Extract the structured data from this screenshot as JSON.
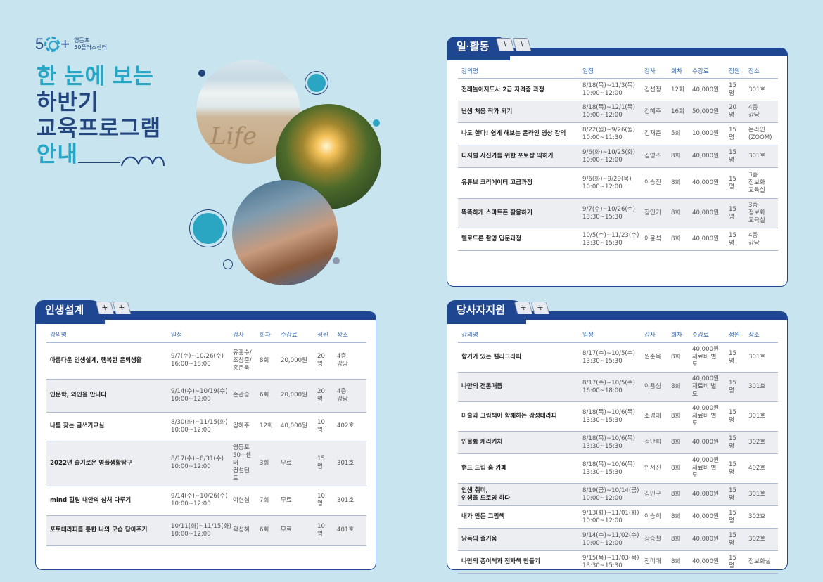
{
  "logo": {
    "mark_left": "5",
    "mark_right": "+",
    "text": "영등포\n50플러스센터"
  },
  "title": {
    "line1": "한 눈에 보는",
    "line2": "하반기",
    "line3": "교육프로그램",
    "line4": "안내"
  },
  "colors": {
    "background": "#c8e4ee",
    "navy": "#1f4690",
    "teal": "#27a6c6",
    "header_text": "#3a6db5"
  },
  "headers": [
    "강의명",
    "일정",
    "강사",
    "회차",
    "수강료",
    "정원",
    "장소"
  ],
  "plus_label": "+",
  "sections": [
    {
      "title": "일·활동",
      "rows": [
        [
          "전래놀이지도사 2급 자격증 과정",
          "8/18(목)~11/3(목)\n10:00~12:00",
          "김선정",
          "12회",
          "40,000원",
          "15명",
          "301호"
        ],
        [
          "난생 처음 작가 되기",
          "8/18(목)~12/1(목)\n10:00~12:00",
          "김혜주",
          "16회",
          "50,000원",
          "20명",
          "4층\n강당"
        ],
        [
          "나도 한다! 쉽게 해보는 온라인 영상 강의",
          "8/22(월)~9/26(월)\n10:00~11:30",
          "김재춘",
          "5회",
          "10,000원",
          "15명",
          "온라인\n(ZOOM)"
        ],
        [
          "디지털 사진가를 위한 포토샵 익히기",
          "9/6(화)~10/25(화)\n10:00~12:00",
          "김영조",
          "8회",
          "40,000원",
          "15명",
          "301호"
        ],
        [
          "유튜브 크리에이터 고급과정",
          "9/6(화)~9/29(목)\n10:00~12:00",
          "이승진",
          "8회",
          "40,000원",
          "15명",
          "3층\n정보화\n교육실"
        ],
        [
          "똑똑하게 스마트폰 활용하기",
          "9/7(수)~10/26(수)\n13:30~15:30",
          "장인기",
          "8회",
          "40,000원",
          "15명",
          "3층\n정보화\n교육실"
        ],
        [
          "텔로드론 촬영 입문과정",
          "10/5(수)~11/23(수)\n13:30~15:30",
          "이윤석",
          "8회",
          "40,000원",
          "15명",
          "4층\n강당"
        ]
      ]
    },
    {
      "title": "인생설계",
      "rows": [
        [
          "아름다운 인생설계, 행복한 은퇴생활",
          "9/7(수)~10/26(수)\n16:00~18:00",
          "유홍수/\n조창준/\n홍춘욱",
          "8회",
          "20,000원",
          "20명",
          "4층\n강당"
        ],
        [
          "인문학, 와인을 만나다",
          "9/14(수)~10/19(수)\n10:00~12:00",
          "손관승",
          "6회",
          "20,000원",
          "20명",
          "4층\n강당"
        ],
        [
          "나를 찾는 글쓰기교실",
          "8/30(화)~11/15(화)\n10:00~12:00",
          "김혜주",
          "12회",
          "40,000원",
          "10명",
          "402호"
        ],
        [
          "2022년 슬기로운 영플생활탐구",
          "8/17(수)~8/31(수)\n10:00~12:00",
          "영등포\n50+센터\n컨설턴트",
          "3회",
          "무료",
          "15명",
          "301호"
        ],
        [
          "mind 힐링 내안의 상처 다루기",
          "9/14(수)~10/26(수)\n10:00~12:00",
          "여현심",
          "7회",
          "무료",
          "10명",
          "301호"
        ],
        [
          "포토테라피를 통한 나의 모습 담아주기",
          "10/11(화)~11/15(화)\n10:00~12:00",
          "곽성혜",
          "6회",
          "무료",
          "10명",
          "401호"
        ]
      ]
    },
    {
      "title": "당사자지원",
      "rows": [
        [
          "향기가 있는 캘리그라피",
          "8/17(수)~10/5(수)\n13:30~15:30",
          "원춘옥",
          "8회",
          "40,000원\n재료비 별도",
          "15명",
          "301호"
        ],
        [
          "나만의 전통매듭",
          "8/17(수)~10/5(수)\n16:00~18:00",
          "이용심",
          "8회",
          "40,000원\n재료비 별도",
          "15명",
          "301호"
        ],
        [
          "미술과 그림책이 함께하는 감성테라피",
          "8/18(목)~10/6(목)\n13:30~15:30",
          "조경애",
          "8회",
          "40,000원\n재료비 별도",
          "15명",
          "301호"
        ],
        [
          "인물화 캐리커처",
          "8/18(목)~10/6(목)\n13:30~15:30",
          "정난희",
          "8회",
          "40,000원",
          "15명",
          "302호"
        ],
        [
          "핸드 드립 홈 카페",
          "8/18(목)~10/6(목)\n13:30~15:30",
          "인서진",
          "8회",
          "40,000원\n재료비 별도",
          "15명",
          "402호"
        ],
        [
          "인생 취미,\n인생을 드로잉 하다",
          "8/19(금)~10/14(금)\n10:00~12:00",
          "김민구",
          "8회",
          "40,000원",
          "15명",
          "301호"
        ],
        [
          "내가 만든 그림책",
          "9/13(화)~11/01(화)\n10:00~12:00",
          "이승희",
          "8회",
          "40,000원",
          "15명",
          "302호"
        ],
        [
          "낭독의 즐거움",
          "9/14(수)~11/02(수)\n10:00~12:00",
          "장승철",
          "8회",
          "40,000원",
          "15명",
          "302호"
        ],
        [
          "나만의 종이책과 전자책 만들기",
          "9/15(목)~11/03(목)\n13:30~15:30",
          "전미애",
          "8회",
          "40,000원",
          "15명",
          "정보화실"
        ]
      ]
    }
  ]
}
